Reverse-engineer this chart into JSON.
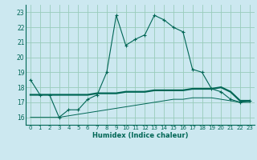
{
  "xlabel": "Humidex (Indice chaleur)",
  "background_color": "#cce8f0",
  "grid_color": "#99ccbb",
  "line_color": "#006655",
  "xlim": [
    -0.5,
    23.5
  ],
  "ylim": [
    15.5,
    23.5
  ],
  "xticks": [
    0,
    1,
    2,
    3,
    4,
    5,
    6,
    7,
    8,
    9,
    10,
    11,
    12,
    13,
    14,
    15,
    16,
    17,
    18,
    19,
    20,
    21,
    22,
    23
  ],
  "yticks": [
    16,
    17,
    18,
    19,
    20,
    21,
    22,
    23
  ],
  "line1_x": [
    0,
    1,
    2,
    3,
    4,
    5,
    6,
    7,
    8,
    9,
    10,
    11,
    12,
    13,
    14,
    15,
    16,
    17,
    18,
    19,
    20,
    21,
    22,
    23
  ],
  "line1_y": [
    18.5,
    17.5,
    17.5,
    16.0,
    16.5,
    16.5,
    17.2,
    17.5,
    19.0,
    22.8,
    20.8,
    21.2,
    21.5,
    22.8,
    22.5,
    22.0,
    21.7,
    19.2,
    19.0,
    17.9,
    17.7,
    17.2,
    17.0,
    17.1
  ],
  "line2_x": [
    0,
    1,
    2,
    3,
    4,
    5,
    6,
    7,
    8,
    9,
    10,
    11,
    12,
    13,
    14,
    15,
    16,
    17,
    18,
    19,
    20,
    21,
    22,
    23
  ],
  "line2_y": [
    17.5,
    17.5,
    17.5,
    17.5,
    17.5,
    17.5,
    17.5,
    17.6,
    17.6,
    17.6,
    17.7,
    17.7,
    17.7,
    17.8,
    17.8,
    17.8,
    17.8,
    17.9,
    17.9,
    17.9,
    18.0,
    17.7,
    17.1,
    17.1
  ],
  "line3_x": [
    0,
    1,
    2,
    3,
    4,
    5,
    6,
    7,
    8,
    9,
    10,
    11,
    12,
    13,
    14,
    15,
    16,
    17,
    18,
    19,
    20,
    21,
    22,
    23
  ],
  "line3_y": [
    16.0,
    16.0,
    16.0,
    16.0,
    16.1,
    16.2,
    16.3,
    16.4,
    16.5,
    16.6,
    16.7,
    16.8,
    16.9,
    17.0,
    17.1,
    17.2,
    17.2,
    17.3,
    17.3,
    17.3,
    17.2,
    17.1,
    17.0,
    17.0
  ]
}
